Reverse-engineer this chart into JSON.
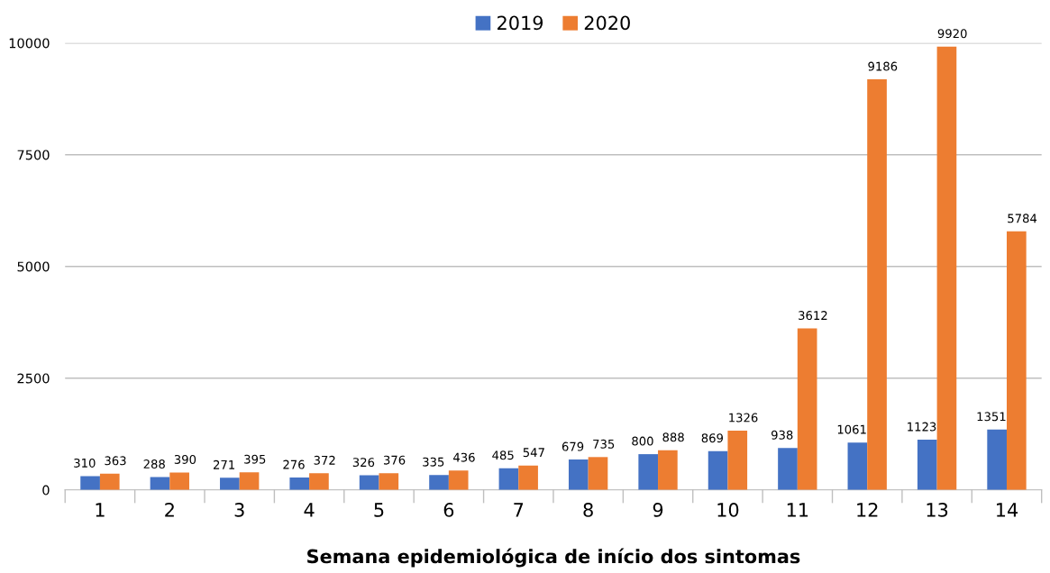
{
  "chart_data": {
    "type": "bar",
    "xlabel": "Semana epidemiológica de início dos sintomas",
    "categories": [
      "1",
      "2",
      "3",
      "4",
      "5",
      "6",
      "7",
      "8",
      "9",
      "10",
      "11",
      "12",
      "13",
      "14"
    ],
    "series": [
      {
        "name": "2019",
        "color": "#4472c4",
        "values": [
          310,
          288,
          271,
          276,
          326,
          335,
          485,
          679,
          800,
          869,
          938,
          1061,
          1123,
          1351
        ]
      },
      {
        "name": "2020",
        "color": "#ed7d31",
        "values": [
          363,
          390,
          395,
          372,
          376,
          436,
          547,
          735,
          888,
          1326,
          3612,
          9186,
          9920,
          5784
        ]
      }
    ],
    "ylim": [
      0,
      10000
    ],
    "yticks": [
      0,
      2500,
      5000,
      7500,
      10000
    ],
    "grid": "y",
    "legend": "top",
    "data_labels": true
  }
}
